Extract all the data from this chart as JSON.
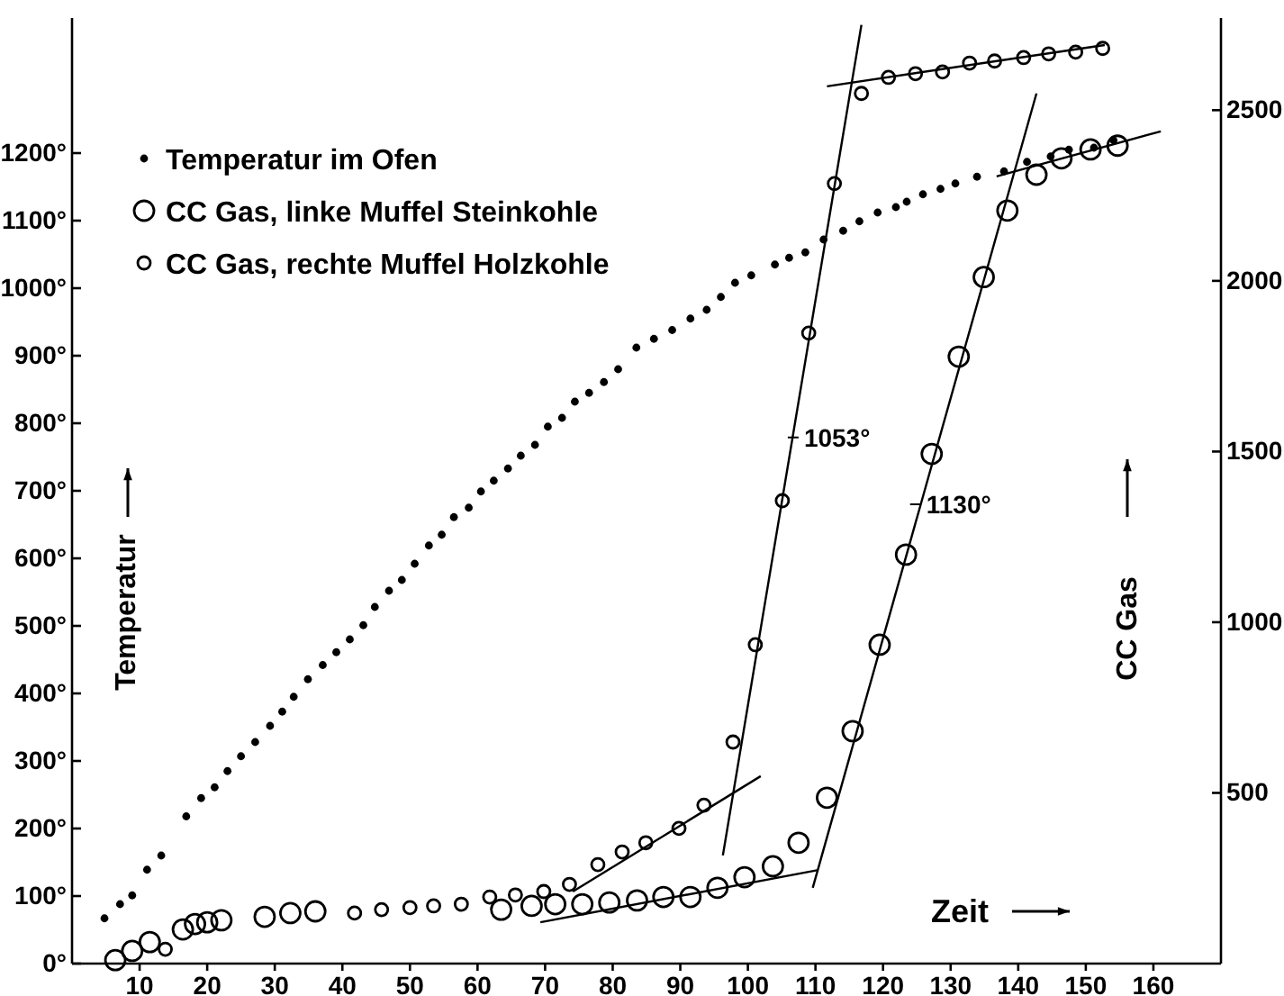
{
  "chart_data": {
    "type": "scatter",
    "xlabel": "Zeit",
    "ylabel": "Temperatur",
    "y2label": "CC Gas",
    "legend": "top left",
    "grid": false,
    "marker": "circle",
    "xlim": [
      0,
      170
    ],
    "xticks": [
      10,
      20,
      30,
      40,
      50,
      60,
      70,
      80,
      90,
      100,
      110,
      120,
      130,
      140,
      150,
      160
    ],
    "ylim": [
      0,
      1400
    ],
    "yticks": [
      {
        "value": 0,
        "label": "0°"
      },
      {
        "value": 100,
        "label": "100°"
      },
      {
        "value": 200,
        "label": "200°"
      },
      {
        "value": 300,
        "label": "300°"
      },
      {
        "value": 400,
        "label": "400°"
      },
      {
        "value": 500,
        "label": "500°"
      },
      {
        "value": 600,
        "label": "600°"
      },
      {
        "value": 700,
        "label": "700°"
      },
      {
        "value": 800,
        "label": "800°"
      },
      {
        "value": 900,
        "label": "900°"
      },
      {
        "value": 1000,
        "label": "1000°"
      },
      {
        "value": 1100,
        "label": "1100°"
      },
      {
        "value": 1200,
        "label": "1200°"
      }
    ],
    "y2lim": [
      0,
      2770
    ],
    "y2ticks": [
      500,
      1000,
      1500,
      2000,
      2500
    ],
    "annotations": [
      {
        "text": "1053°",
        "x": 106.7,
        "y": 779
      },
      {
        "text": "1130°",
        "x": 124.8,
        "y": 680
      }
    ],
    "series": [
      {
        "name": "Temperatur im Ofen",
        "color": "#000000",
        "x": [
          4.8,
          7.1,
          8.9,
          11.1,
          13.2,
          16.9,
          19.1,
          21.1,
          23,
          25,
          27.1,
          29.3,
          31.1,
          32.8,
          34.9,
          37.1,
          39.1,
          41.1,
          43.1,
          44.8,
          46.9,
          48.8,
          50.7,
          52.8,
          54.7,
          56.5,
          58.7,
          60.5,
          62.4,
          64.5,
          66.4,
          68.5,
          70.4,
          72.5,
          74.4,
          76.5,
          78.7,
          80.8,
          83.5,
          86.1,
          88.8,
          91.5,
          93.9,
          96,
          98.1,
          100.5,
          104,
          106.1,
          108.5,
          111.2,
          114.1,
          116.5,
          119.2,
          121.9,
          123.5,
          125.9,
          128.5,
          130.7,
          133.9,
          137.9,
          141.3,
          144.8,
          147.5,
          151.2,
          154.1
        ],
        "values": [
          67,
          88,
          101,
          139,
          160,
          218,
          245,
          261,
          285,
          307,
          328,
          352,
          373,
          395,
          421,
          442,
          461,
          480,
          501,
          528,
          552,
          568,
          592,
          619,
          635,
          661,
          675,
          699,
          715,
          733,
          752,
          768,
          795,
          808,
          832,
          845,
          861,
          880,
          912,
          925,
          938,
          955,
          968,
          987,
          1008,
          1019,
          1035,
          1045,
          1053,
          1072,
          1085,
          1099,
          1112,
          1120,
          1128,
          1139,
          1147,
          1155,
          1165,
          1173,
          1187,
          1195,
          1205,
          1208,
          1219
        ]
      },
      {
        "name": "CC Gas, linke Muffel Steinkohle",
        "color": "#000000",
        "axis": "y2",
        "x": [
          6.4,
          8.9,
          11.5,
          16.4,
          18.2,
          20,
          22.1,
          28.5,
          32.3,
          36,
          63.5,
          68,
          71.5,
          75.5,
          79.5,
          83.6,
          87.5,
          91.5,
          95.5,
          99.5,
          103.7,
          107.5,
          111.7,
          115.5,
          119.5,
          123.4,
          127.2,
          131.2,
          134.9,
          138.4,
          142.7,
          146.4,
          150.7,
          154.7
        ],
        "values": [
          10,
          37,
          63,
          100,
          116,
          121,
          127,
          137,
          148,
          153,
          158,
          169,
          174,
          174,
          179,
          185,
          195,
          195,
          222,
          253,
          285,
          354,
          486,
          681,
          934,
          1198,
          1493,
          1778,
          2011,
          2206,
          2311,
          2359,
          2385,
          2396
        ]
      },
      {
        "name": "CC Gas, rechte Muffel Holzkohle",
        "color": "#000000",
        "axis": "y2",
        "x": [
          13.8,
          41.8,
          45.8,
          50,
          53.5,
          57.6,
          61.8,
          65.6,
          69.8,
          73.6,
          77.8,
          81.4,
          84.9,
          89.8,
          93.5,
          97.8,
          101.1,
          105.1,
          109,
          112.8,
          116.8,
          120.8,
          124.8,
          128.8,
          132.8,
          136.5,
          140.8,
          144.5,
          148.5,
          152.5
        ],
        "values": [
          42,
          148,
          158,
          164,
          169,
          174,
          195,
          201,
          211,
          232,
          290,
          327,
          354,
          396,
          464,
          649,
          934,
          1356,
          1847,
          2285,
          2549,
          2596,
          2607,
          2612,
          2638,
          2644,
          2654,
          2665,
          2670,
          2681
        ]
      },
      {
        "type": "line",
        "marker": "none",
        "color": "#000000",
        "axis": "y2",
        "x": [
          74.1,
          101.9
        ],
        "values": [
          211,
          549
        ]
      },
      {
        "type": "line",
        "marker": "none",
        "color": "#000000",
        "axis": "y2",
        "x": [
          96.3,
          116.8
        ],
        "values": [
          317,
          2750
        ]
      },
      {
        "type": "line",
        "marker": "none",
        "color": "#000000",
        "axis": "y2",
        "x": [
          111.7,
          152.8
        ],
        "values": [
          2570,
          2691
        ]
      },
      {
        "type": "line",
        "marker": "none",
        "color": "#000000",
        "axis": "y2",
        "x": [
          69.3,
          110.4
        ],
        "values": [
          121,
          274
        ]
      },
      {
        "type": "line",
        "marker": "none",
        "color": "#000000",
        "axis": "y2",
        "x": [
          109.6,
          142.7
        ],
        "values": [
          222,
          2549
        ]
      },
      {
        "type": "line",
        "marker": "none",
        "color": "#000000",
        "axis": "y2",
        "x": [
          136.8,
          161.1
        ],
        "values": [
          2306,
          2438
        ]
      }
    ]
  }
}
